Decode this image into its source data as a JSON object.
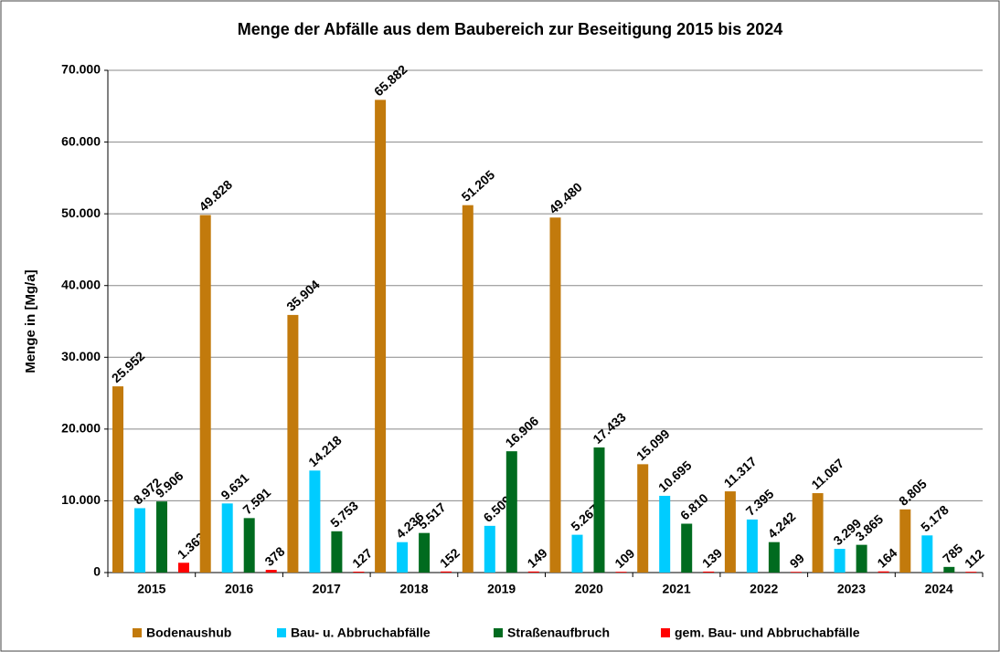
{
  "chart_data": {
    "type": "bar",
    "title": "Menge der Abfälle aus dem Baubereich zur Beseitigung 2015 bis 2024",
    "y_label": "Menge in [Mg/a]",
    "categories": [
      "2015",
      "2016",
      "2017",
      "2018",
      "2019",
      "2020",
      "2021",
      "2022",
      "2023",
      "2024"
    ],
    "series": [
      {
        "name": "Bodenaushub",
        "color": "#c27a0c",
        "values": [
          25952,
          49828,
          35904,
          65882,
          51205,
          49480,
          15099,
          11317,
          11067,
          8805
        ],
        "value_labels": [
          "25.952",
          "49.828",
          "35.904",
          "65.882",
          "51.205",
          "49.480",
          "15.099",
          "11.317",
          "11.067",
          "8.805"
        ]
      },
      {
        "name": "Bau- u. Abbruchabfälle",
        "color": "#00ccff",
        "values": [
          8972,
          9631,
          14218,
          4236,
          6509,
          5267,
          10695,
          7395,
          3299,
          5178
        ],
        "value_labels": [
          "8.972",
          "9.631",
          "14.218",
          "4.236",
          "6.509",
          "5.267",
          "10.695",
          "7.395",
          "3.299",
          "5.178"
        ]
      },
      {
        "name": "Straßenaufbruch",
        "color": "#006b1f",
        "values": [
          9906,
          7591,
          5753,
          5517,
          16906,
          17433,
          6810,
          4242,
          3865,
          785
        ],
        "value_labels": [
          "9.906",
          "7.591",
          "5.753",
          "5.517",
          "16.906",
          "17.433",
          "6.810",
          "4.242",
          "3.865",
          "785"
        ]
      },
      {
        "name": "gem. Bau- und Abbruchabfälle",
        "color": "#ff0000",
        "values": [
          1363,
          378,
          127,
          152,
          149,
          109,
          139,
          99,
          164,
          112
        ],
        "value_labels": [
          "1.363",
          "378",
          "127",
          "152",
          "149",
          "109",
          "139",
          "99",
          "164",
          "112"
        ]
      }
    ],
    "ylim": [
      0,
      70000
    ],
    "yticks": [
      0,
      {
        "value": 10000,
        "label": "10.000"
      },
      {
        "value": 20000,
        "label": "20.000"
      },
      {
        "value": 30000,
        "label": "30.000"
      },
      {
        "value": 40000,
        "label": "40.000"
      },
      {
        "value": 50000,
        "label": "50.000"
      },
      {
        "value": 60000,
        "label": "60.000"
      },
      {
        "value": 70000,
        "label": "70.000"
      }
    ],
    "grid": true,
    "legend": "bottom"
  }
}
